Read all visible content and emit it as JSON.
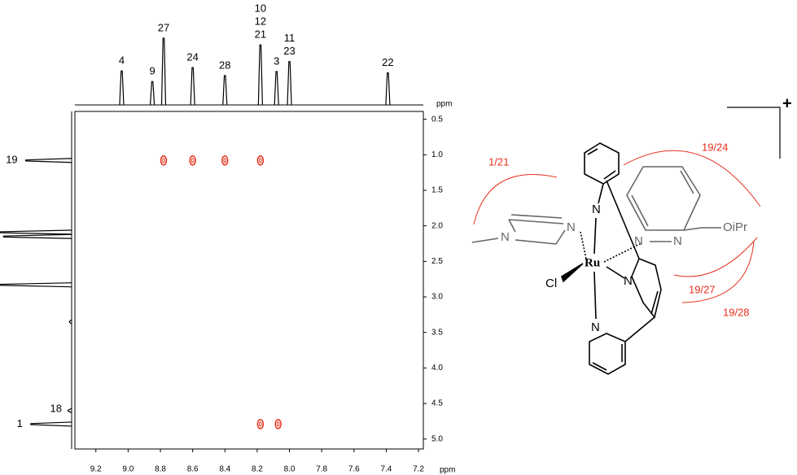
{
  "chart_data": {
    "type": "scatter",
    "x": [
      8.78,
      8.6,
      8.4,
      8.18,
      8.18,
      8.07
    ],
    "values": [
      1.08,
      1.08,
      1.08,
      1.08,
      4.79,
      4.79
    ],
    "color": "#e8301c",
    "xlabel": "ppm",
    "ylabel": "ppm",
    "xlim": [
      9.33,
      7.17
    ],
    "xticks": [
      9.2,
      {
        "value": 9,
        "label": "9.0"
      },
      8.8,
      8.6,
      8.4,
      8.2,
      {
        "value": 8,
        "label": "8.0"
      },
      7.8,
      7.6,
      7.4,
      7.2
    ],
    "ylim": [
      0.39,
      5.14
    ],
    "yticks": [
      0.5,
      {
        "value": 1,
        "label": "1.0"
      },
      1.5,
      {
        "value": 2,
        "label": "2.0"
      },
      2.5,
      {
        "value": 3,
        "label": "3.0"
      },
      3.5,
      {
        "value": 4,
        "label": "4.0"
      },
      4.5,
      {
        "value": 5,
        "label": "5.0"
      }
    ],
    "f2_projection": {
      "x": [
        9.04,
        8.85,
        8.78,
        8.6,
        8.4,
        8.18,
        8.08,
        8.0,
        7.39
      ],
      "heights": [
        51,
        35,
        100,
        56,
        44,
        90,
        50,
        65,
        48
      ],
      "labels": [
        [
          "4"
        ],
        [
          "9"
        ],
        [
          "27"
        ],
        [
          "24"
        ],
        [
          "28"
        ],
        [
          "10",
          "12",
          "21"
        ],
        [
          "3"
        ],
        [
          "11",
          "23"
        ],
        [
          "22"
        ]
      ]
    },
    "f1_projection": {
      "y": [
        1.08,
        2.09,
        2.15,
        2.83,
        3.35,
        4.6,
        4.79
      ],
      "heights": [
        64,
        100,
        95,
        100,
        3,
        5,
        57
      ],
      "labels": [
        "19",
        null,
        null,
        null,
        null,
        "18",
        "1"
      ]
    }
  },
  "structure": {
    "atom_labels": [
      "N",
      "N",
      "N",
      "N",
      "N",
      "N",
      "N",
      "Ru",
      "Cl",
      "OiPr"
    ],
    "noe_labels": [
      "1/21",
      "19/24",
      "19/27",
      "19/28"
    ],
    "charge": "+"
  }
}
